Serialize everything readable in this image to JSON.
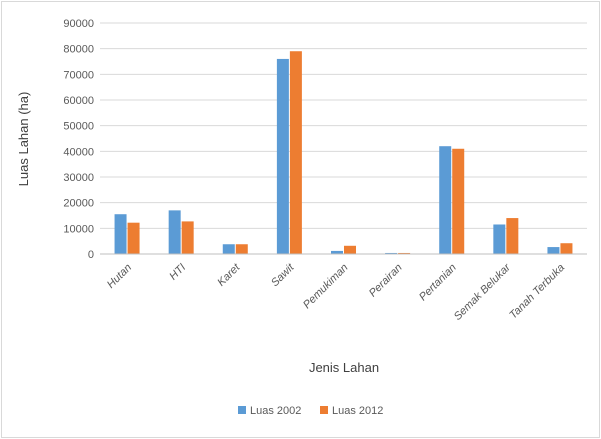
{
  "chart_data": {
    "type": "bar",
    "categories": [
      "Hutan",
      "HTI",
      "Karet",
      "Sawit",
      "Pemukiman",
      "Perairan",
      "Pertanian",
      "Semak Belukar",
      "Tanah Terbuka"
    ],
    "series": [
      {
        "name": "Luas 2002",
        "color": "#5B9BD5",
        "values": [
          15500,
          17000,
          3800,
          76000,
          1200,
          400,
          42000,
          11500,
          2700
        ]
      },
      {
        "name": "Luas 2012",
        "color": "#ED7D31",
        "values": [
          12200,
          12700,
          3800,
          79000,
          3200,
          400,
          41000,
          14000,
          4200
        ]
      }
    ],
    "xlabel": "Jenis Lahan",
    "ylabel": "Luas Lahan (ha)",
    "ylim": [
      0,
      90000
    ],
    "yticks": [
      "0",
      "10000",
      "20000",
      "30000",
      "40000",
      "50000",
      "60000",
      "70000",
      "80000",
      "90000"
    ],
    "grid": true,
    "legend_position": "bottom"
  }
}
